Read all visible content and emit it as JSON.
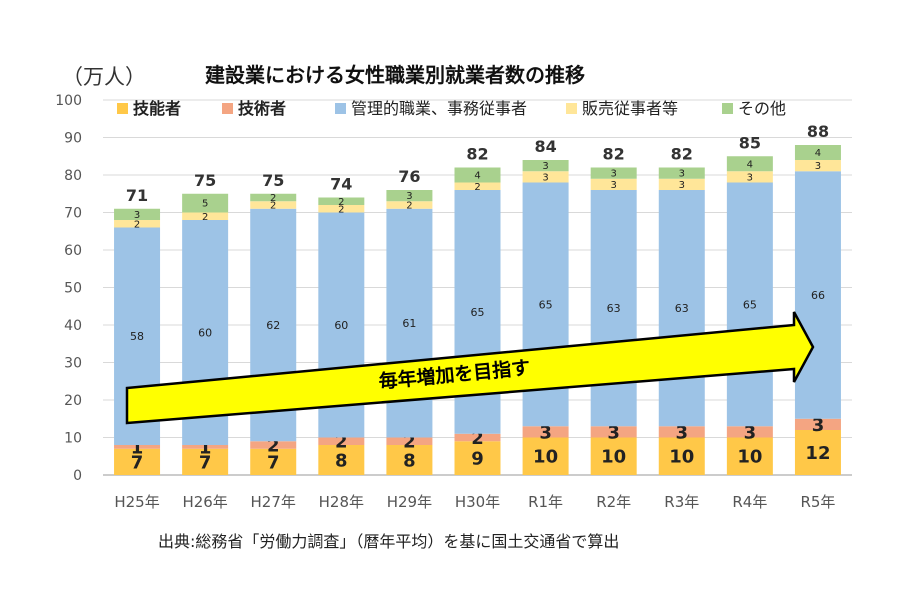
{
  "chart_data": {
    "type": "bar",
    "stacked": true,
    "title": "建設業における女性職業別就業者数の推移",
    "unit": "（万人）",
    "categories": [
      "H25年",
      "H26年",
      "H27年",
      "H28年",
      "H29年",
      "H30年",
      "R1年",
      "R2年",
      "R3年",
      "R4年",
      "R5年"
    ],
    "series": [
      {
        "name": "技能者",
        "values": [
          7,
          7,
          7,
          8,
          8,
          9,
          10,
          10,
          10,
          10,
          12
        ],
        "color": "#FFC848"
      },
      {
        "name": "技術者",
        "values": [
          1,
          1,
          2,
          2,
          2,
          2,
          3,
          3,
          3,
          3,
          3
        ],
        "color": "#F4A582"
      },
      {
        "name": "管理的職業、事務従事者",
        "values": [
          58,
          60,
          62,
          60,
          61,
          65,
          65,
          63,
          63,
          65,
          66
        ],
        "color": "#9DC3E6"
      },
      {
        "name": "販売従事者等",
        "values": [
          2,
          2,
          2,
          2,
          2,
          2,
          3,
          3,
          3,
          3,
          3
        ],
        "color": "#FFE699"
      },
      {
        "name": "その他",
        "values": [
          3,
          5,
          2,
          2,
          3,
          4,
          3,
          3,
          3,
          4,
          4
        ],
        "color": "#A9D18E"
      }
    ],
    "totals": [
      71,
      75,
      75,
      74,
      76,
      82,
      84,
      82,
      82,
      85,
      88
    ],
    "ylim": [
      0,
      100
    ],
    "yticks": [
      0,
      10,
      20,
      30,
      40,
      50,
      60,
      70,
      80,
      90,
      100
    ],
    "grid": true,
    "legend": "top",
    "annotation": "毎年増加を目指す",
    "source": "出典:総務省「労働力調査」（暦年平均）を基に国土交通省で算出"
  }
}
